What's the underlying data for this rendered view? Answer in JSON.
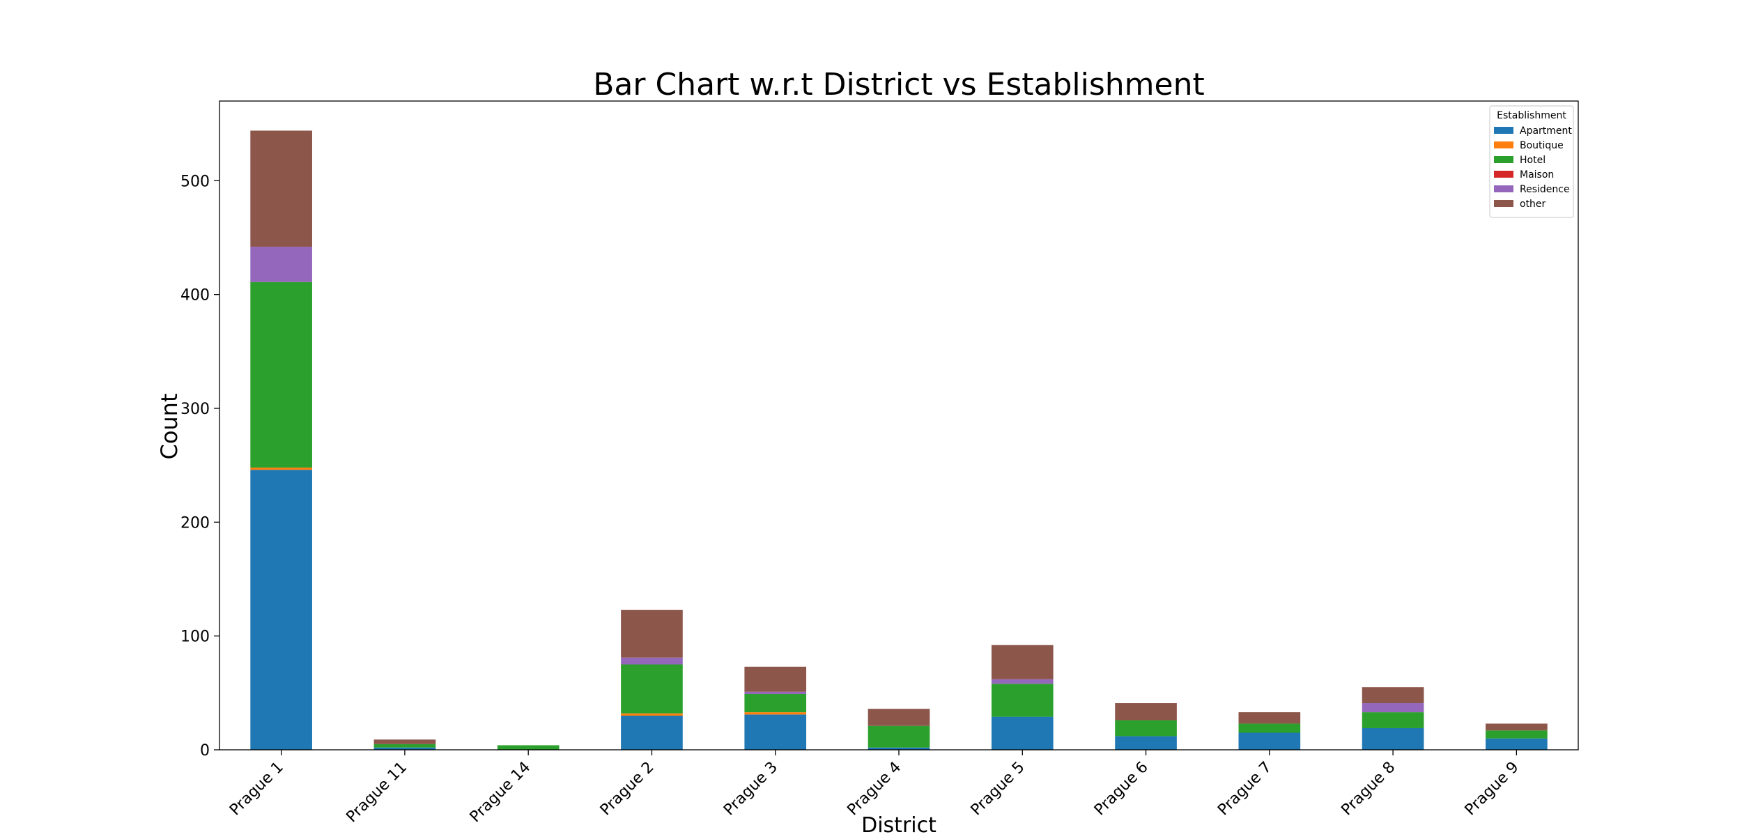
{
  "chart_data": {
    "type": "bar",
    "stacked": true,
    "title": "Bar Chart w.r.t District vs Establishment",
    "xlabel": "District",
    "ylabel": "Count",
    "ylim": [
      0,
      570
    ],
    "yticks": [
      0,
      100,
      200,
      300,
      400,
      500
    ],
    "grid": false,
    "legend_title": "Establishment",
    "legend_position": "top-right",
    "categories": [
      "Prague 1",
      "Prague 11",
      "Prague 14",
      "Prague 2",
      "Prague 3",
      "Prague 4",
      "Prague 5",
      "Prague 6",
      "Prague 7",
      "Prague 8",
      "Prague 9"
    ],
    "series": [
      {
        "name": "Apartment",
        "color": "#1f77b4",
        "values": [
          246,
          2,
          0,
          30,
          31,
          2,
          29,
          12,
          15,
          19,
          10
        ]
      },
      {
        "name": "Boutique",
        "color": "#ff7f0e",
        "values": [
          2,
          0,
          0,
          2,
          2,
          0,
          0,
          0,
          0,
          0,
          0
        ]
      },
      {
        "name": "Hotel",
        "color": "#2ca02c",
        "values": [
          163,
          3,
          4,
          43,
          16,
          19,
          29,
          14,
          8,
          14,
          7
        ]
      },
      {
        "name": "Maison",
        "color": "#d62728",
        "values": [
          0,
          0,
          0,
          0,
          0,
          0,
          0,
          0,
          0,
          0,
          0
        ]
      },
      {
        "name": "Residence",
        "color": "#9467bd",
        "values": [
          31,
          0,
          0,
          6,
          2,
          0,
          4,
          0,
          0,
          8,
          0
        ]
      },
      {
        "name": "other",
        "color": "#8c564b",
        "values": [
          102,
          4,
          0,
          42,
          22,
          15,
          30,
          15,
          10,
          14,
          6
        ]
      }
    ]
  }
}
